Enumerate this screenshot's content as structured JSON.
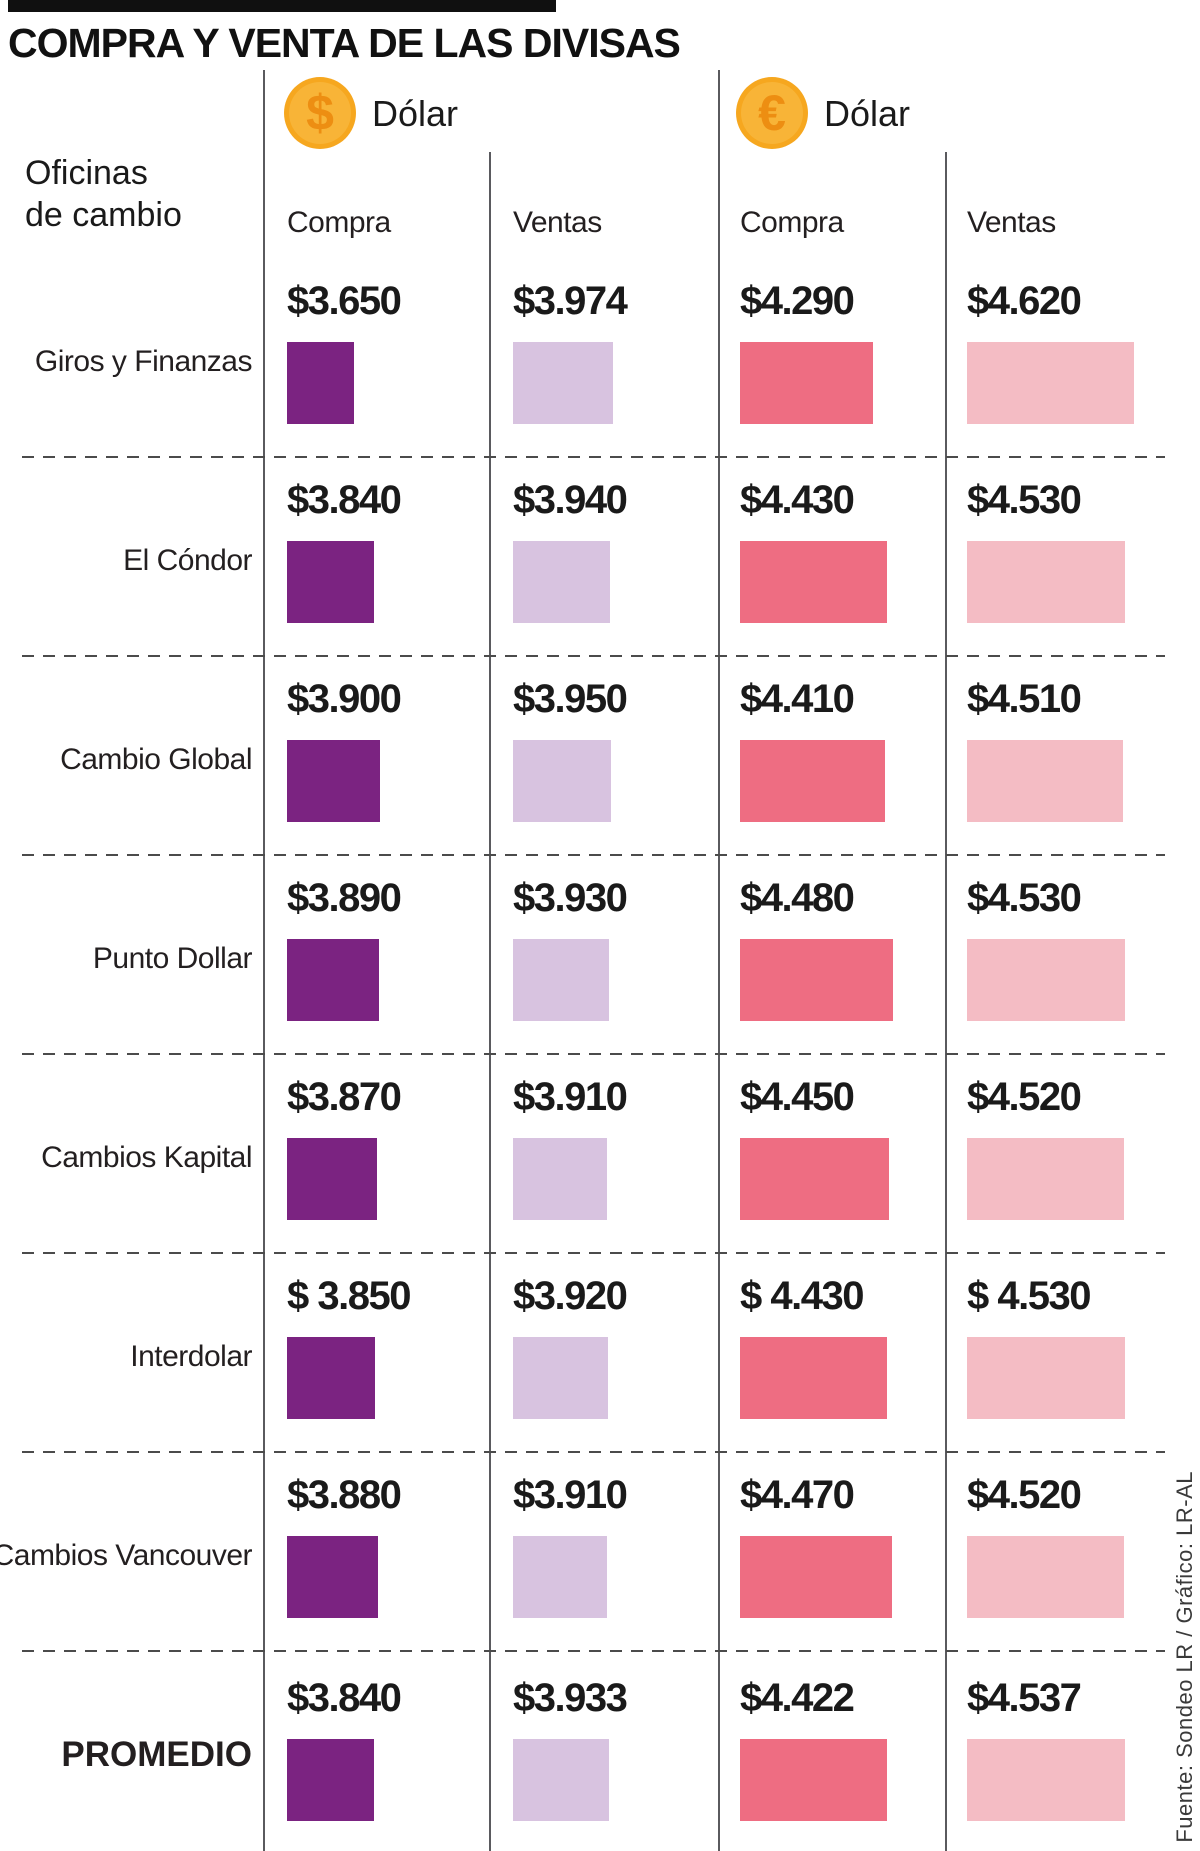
{
  "title": "COMPRA Y VENTA DE LAS DIVISAS",
  "source": "Fuente: Sondeo LR / Gráfico: LR-AL",
  "header": {
    "office_label_line1": "Oficinas",
    "office_label_line2": "de cambio",
    "currencies": [
      {
        "name": "Dólar",
        "symbol": "$",
        "columns": [
          "Compra",
          "Ventas"
        ]
      },
      {
        "name": "Dólar",
        "symbol": "€",
        "columns": [
          "Compra",
          "Ventas"
        ]
      }
    ]
  },
  "colors": {
    "dollarCompra": "#7B2381",
    "dollarVentas": "#D8C3E0",
    "euroCompra": "#EE6D82",
    "euroVentas": "#F4BCC4",
    "coin": "#F6A71F",
    "coinSymbol": "#ED8E12"
  },
  "rows": [
    {
      "office": "Giros y Finanzas",
      "values": [
        {
          "label": "$3.650",
          "value": 3650
        },
        {
          "label": "$3.974",
          "value": 3974
        },
        {
          "label": "$4.290",
          "value": 4290
        },
        {
          "label": "$4.620",
          "value": 4620
        }
      ]
    },
    {
      "office": "El Cóndor",
      "values": [
        {
          "label": "$3.840",
          "value": 3840
        },
        {
          "label": "$3.940",
          "value": 3940
        },
        {
          "label": "$4.430",
          "value": 4430
        },
        {
          "label": "$4.530",
          "value": 4530
        }
      ]
    },
    {
      "office": "Cambio Global",
      "values": [
        {
          "label": "$3.900",
          "value": 3900
        },
        {
          "label": "$3.950",
          "value": 3950
        },
        {
          "label": "$4.410",
          "value": 4410
        },
        {
          "label": "$4.510",
          "value": 4510
        }
      ]
    },
    {
      "office": "Punto Dollar",
      "values": [
        {
          "label": "$3.890",
          "value": 3890
        },
        {
          "label": "$3.930",
          "value": 3930
        },
        {
          "label": "$4.480",
          "value": 4480
        },
        {
          "label": "$4.530",
          "value": 4530
        }
      ]
    },
    {
      "office": "Cambios Kapital",
      "values": [
        {
          "label": "$3.870",
          "value": 3870
        },
        {
          "label": "$3.910",
          "value": 3910
        },
        {
          "label": "$4.450",
          "value": 4450
        },
        {
          "label": "$4.520",
          "value": 4520
        }
      ]
    },
    {
      "office": "Interdolar",
      "values": [
        {
          "label": "$ 3.850",
          "value": 3850
        },
        {
          "label": "$3.920",
          "value": 3920
        },
        {
          "label": "$ 4.430",
          "value": 4430
        },
        {
          "label": "$ 4.530",
          "value": 4530
        }
      ]
    },
    {
      "office": "Cambios Vancouver",
      "values": [
        {
          "label": "$3.880",
          "value": 3880
        },
        {
          "label": "$3.910",
          "value": 3910
        },
        {
          "label": "$4.470",
          "value": 4470
        },
        {
          "label": "$4.520",
          "value": 4520
        }
      ]
    },
    {
      "office": "PROMEDIO",
      "values": [
        {
          "label": "$3.840",
          "value": 3840
        },
        {
          "label": "$3.933",
          "value": 3933
        },
        {
          "label": "$4.422",
          "value": 4422
        },
        {
          "label": "$4.537",
          "value": 4537
        }
      ]
    }
  ],
  "chart_data": {
    "type": "bar",
    "title": "COMPRA Y VENTA DE LAS DIVISAS",
    "categories": [
      "Giros y Finanzas",
      "El Cóndor",
      "Cambio Global",
      "Punto Dollar",
      "Cambios Kapital",
      "Interdolar",
      "Cambios Vancouver",
      "PROMEDIO"
    ],
    "series": [
      {
        "name": "Dólar ($) Compra",
        "values": [
          3650,
          3840,
          3900,
          3890,
          3870,
          3850,
          3880,
          3840
        ]
      },
      {
        "name": "Dólar ($) Ventas",
        "values": [
          3974,
          3940,
          3950,
          3930,
          3910,
          3920,
          3910,
          3933
        ]
      },
      {
        "name": "Dólar (€) Compra",
        "values": [
          4290,
          4430,
          4410,
          4480,
          4450,
          4430,
          4470,
          4422
        ]
      },
      {
        "name": "Dólar (€) Ventas",
        "values": [
          4620,
          4530,
          4510,
          4530,
          4520,
          4530,
          4520,
          4537
        ]
      }
    ],
    "value_prefix": "$",
    "legend_position": "top",
    "grid": false
  }
}
